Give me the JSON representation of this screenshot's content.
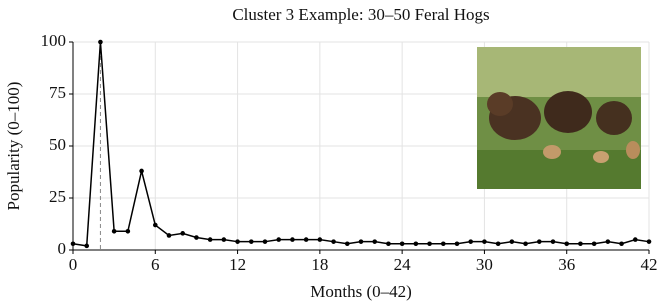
{
  "chart_data": {
    "type": "line",
    "title": "Cluster 3 Example: 30–50 Feral Hogs",
    "x_label": "Months (0–42)",
    "y_label": "Popularity (0–100)",
    "x": [
      0,
      1,
      2,
      3,
      4,
      5,
      6,
      7,
      8,
      9,
      10,
      11,
      12,
      13,
      14,
      15,
      16,
      17,
      18,
      19,
      20,
      21,
      22,
      23,
      24,
      25,
      26,
      27,
      28,
      29,
      30,
      31,
      32,
      33,
      34,
      35,
      36,
      37,
      38,
      39,
      40,
      41,
      42
    ],
    "series": [
      {
        "color": "#000000",
        "values": [
          3,
          2,
          100,
          9,
          9,
          38,
          12,
          7,
          8,
          6,
          5,
          5,
          4,
          4,
          4,
          5,
          5,
          5,
          5,
          4,
          3,
          4,
          4,
          3,
          3,
          3,
          3,
          3,
          3,
          4,
          4,
          3,
          4,
          3,
          4,
          4,
          3,
          3,
          3,
          4,
          3,
          5,
          4
        ]
      }
    ],
    "xlim": [
      0,
      42
    ],
    "ylim": [
      0,
      100
    ],
    "xticks": [
      0,
      6,
      12,
      18,
      24,
      30,
      36,
      42
    ],
    "yticks": [
      0,
      25,
      50,
      75,
      100
    ],
    "grid": true,
    "vlines": [
      {
        "x": 0,
        "color": "#2e7d32",
        "style": "dotted"
      },
      {
        "x": 2,
        "color": "#888888",
        "style": "dashed"
      }
    ]
  }
}
